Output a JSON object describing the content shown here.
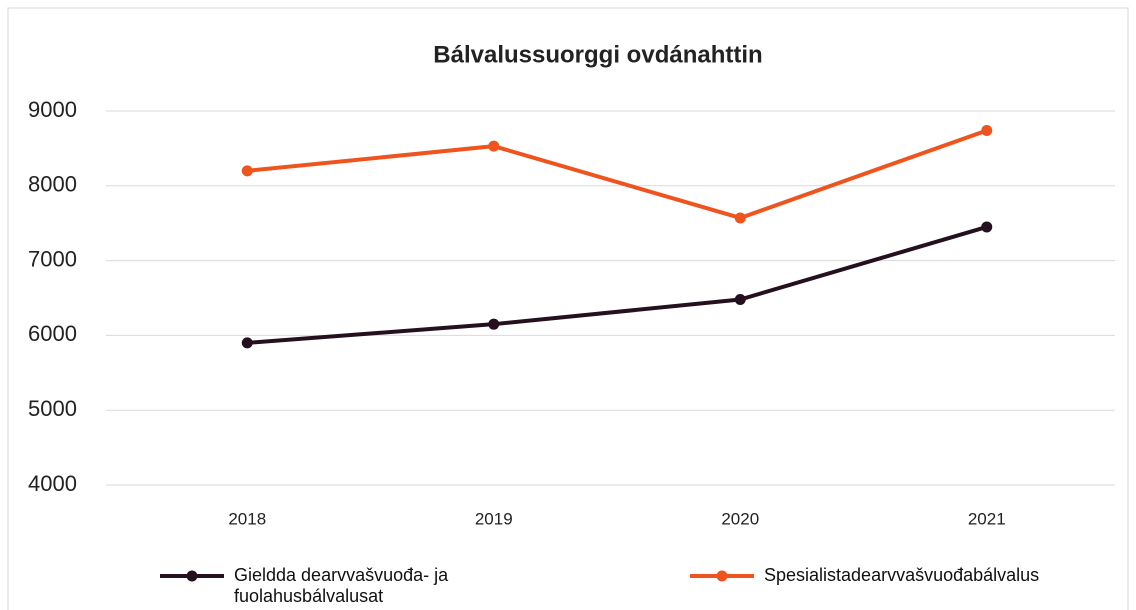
{
  "chart_data": {
    "type": "line",
    "title": "Bálvalussuorggi ovdánahttin",
    "categories": [
      "2018",
      "2019",
      "2020",
      "2021"
    ],
    "series": [
      {
        "name": "Gieldda dearvvašvuođa- ja fuolahusbálvalusat",
        "color": "#24101f",
        "values": [
          5900,
          6150,
          6480,
          7450
        ]
      },
      {
        "name": "Spesialistadearvvašvuođabálvalus",
        "color": "#f0541e",
        "values": [
          8200,
          8530,
          7570,
          8740
        ]
      }
    ],
    "ylim": [
      4000,
      9000
    ],
    "yticks": [
      4000,
      5000,
      6000,
      7000,
      8000,
      9000
    ],
    "grid": true,
    "legend": "bottom"
  }
}
